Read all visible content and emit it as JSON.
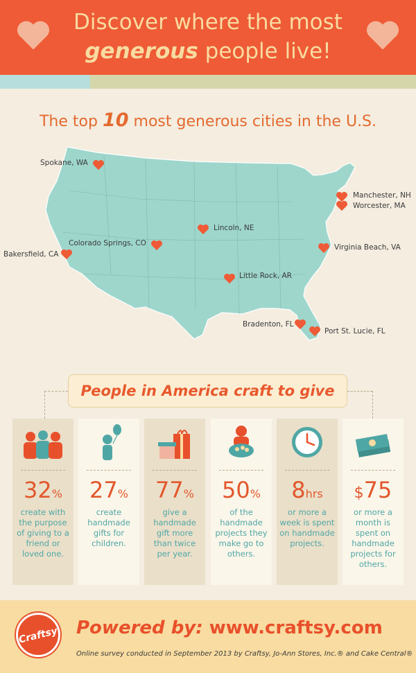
{
  "header": {
    "title_line1": "Discover where the most",
    "title_emph": "generous",
    "title_line2_rest": " people live!"
  },
  "map": {
    "title_pre": "The top ",
    "title_num": "10",
    "title_post": " most generous cities in the U.S.",
    "cities": [
      "Spokane, WA",
      "Manchester, NH",
      "Worcester, MA",
      "Lincoln, NE",
      "Colorado Springs, CO",
      "Bakersfield, CA",
      "Virginia Beach, VA",
      "Little Rock, AR",
      "Bradenton, FL",
      "Port St. Lucie, FL"
    ]
  },
  "craft": {
    "heading": "People in America craft to give",
    "stats": [
      {
        "value": "32",
        "unit": "%",
        "prefix": "",
        "desc": "create with the purpose of giving to a friend or loved one.",
        "icon": "family-hug-icon"
      },
      {
        "value": "27",
        "unit": "%",
        "prefix": "",
        "desc": "create handmade gifts for children.",
        "icon": "child-balloon-icon"
      },
      {
        "value": "77",
        "unit": "%",
        "prefix": "",
        "desc": "give a handmade gift more than twice per year.",
        "icon": "gift-boxes-icon"
      },
      {
        "value": "50",
        "unit": "%",
        "prefix": "",
        "desc": "of the handmade projects they make go to others.",
        "icon": "person-giving-icon"
      },
      {
        "value": "8",
        "unit": "hrs",
        "prefix": "",
        "desc": "or more a week is spent on handmade projects.",
        "icon": "clock-icon"
      },
      {
        "value": "75",
        "unit": "",
        "prefix": "$",
        "desc": "or more a month is spent on handmade projects for others.",
        "icon": "money-stack-icon"
      }
    ]
  },
  "footer": {
    "logo_text": "Craftsy",
    "powered_label": "Powered by:",
    "url": "www.craftsy.com",
    "survey_note": "Online survey conducted in September 2013 by Craftsy, Jo-Ann Stores, Inc.® and Cake Central®"
  },
  "colors": {
    "accent": "#ee5b36",
    "map_fill": "#9ed6cc",
    "teal_text": "#4fa7a5",
    "cream": "#f4ede0"
  }
}
